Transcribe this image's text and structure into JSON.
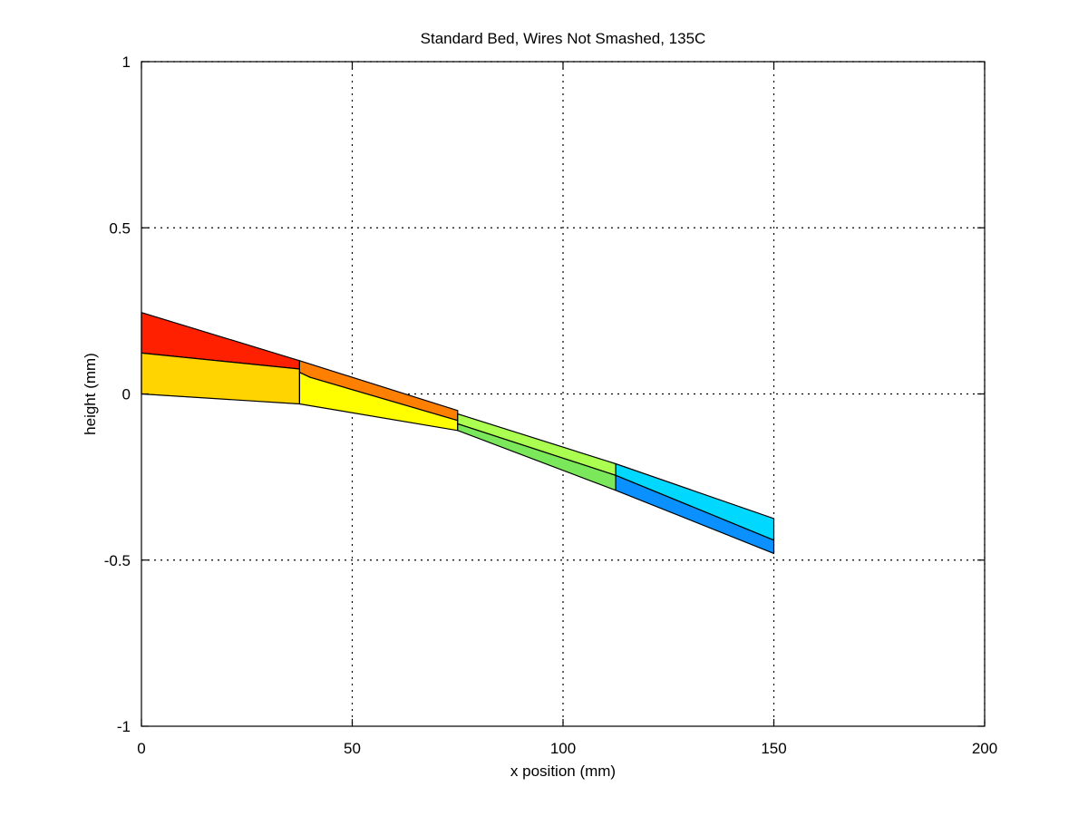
{
  "chart_data": {
    "type": "area",
    "title": "Standard Bed, Wires Not Smashed, 135C",
    "xlabel": "x position (mm)",
    "ylabel": "height (mm)",
    "xlim": [
      0,
      200
    ],
    "ylim": [
      -1,
      1
    ],
    "xticks": [
      0,
      50,
      100,
      150,
      200
    ],
    "yticks": [
      -1,
      -0.5,
      0,
      0.5,
      1
    ],
    "xtick_labels": [
      "0",
      "50",
      "100",
      "150",
      "200"
    ],
    "ytick_labels": [
      "-1",
      "-0.5",
      "0",
      "0.5",
      "1"
    ],
    "grid": true,
    "patches": [
      {
        "color": "#ff2000",
        "points": [
          [
            0,
            0.245
          ],
          [
            37.5,
            0.1
          ],
          [
            37.5,
            0.075
          ],
          [
            0,
            0.123
          ]
        ]
      },
      {
        "color": "#ffd400",
        "points": [
          [
            0,
            0.123
          ],
          [
            37.5,
            0.075
          ],
          [
            37.5,
            -0.03
          ],
          [
            0,
            0
          ]
        ]
      },
      {
        "color": "#ff8000",
        "points": [
          [
            37.5,
            0.1
          ],
          [
            75,
            -0.05
          ],
          [
            75,
            -0.08
          ],
          [
            40,
            0.05
          ],
          [
            37.5,
            0.065
          ]
        ]
      },
      {
        "color": "#ffff00",
        "points": [
          [
            37.5,
            0.065
          ],
          [
            40,
            0.05
          ],
          [
            75,
            -0.08
          ],
          [
            75,
            -0.11
          ],
          [
            37.5,
            -0.03
          ]
        ]
      },
      {
        "color": "#aaff50",
        "points": [
          [
            75,
            -0.06
          ],
          [
            112.5,
            -0.21
          ],
          [
            112.5,
            -0.245
          ],
          [
            75,
            -0.09
          ]
        ]
      },
      {
        "color": "#7ae85a",
        "points": [
          [
            75,
            -0.09
          ],
          [
            112.5,
            -0.245
          ],
          [
            112.5,
            -0.29
          ],
          [
            75,
            -0.11
          ]
        ]
      },
      {
        "color": "#00d8ff",
        "points": [
          [
            112.5,
            -0.21
          ],
          [
            150,
            -0.375
          ],
          [
            150,
            -0.44
          ],
          [
            112.5,
            -0.245
          ]
        ]
      },
      {
        "color": "#0a90ff",
        "points": [
          [
            112.5,
            -0.245
          ],
          [
            150,
            -0.44
          ],
          [
            150,
            -0.48
          ],
          [
            112.5,
            -0.29
          ]
        ]
      }
    ]
  }
}
